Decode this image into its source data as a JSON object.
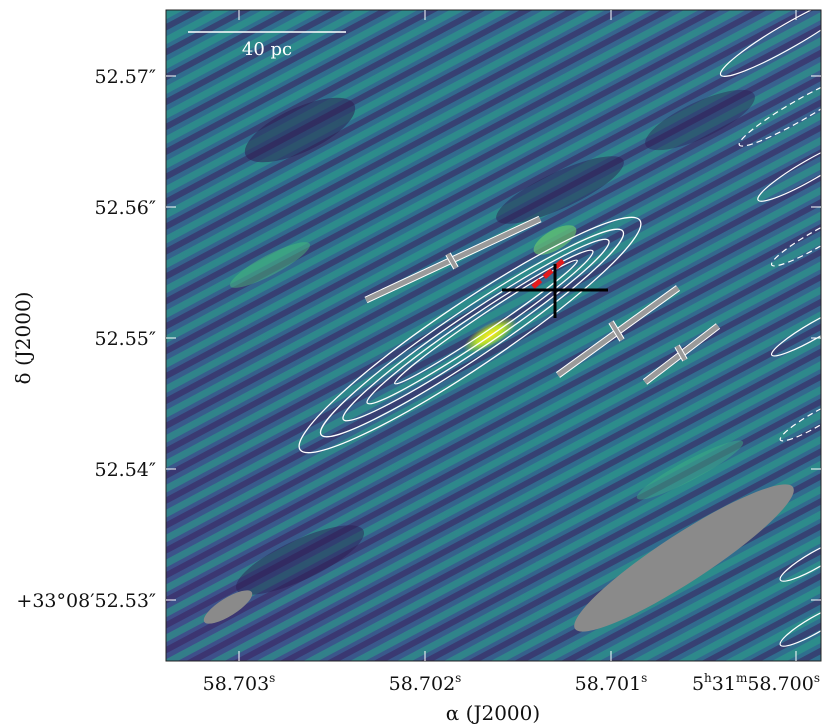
{
  "figure": {
    "x_axis_title": "α (J2000)",
    "y_axis_title": "δ (J2000)",
    "scalebar_label": "40 pc",
    "x_ticks": [
      {
        "main": "58.703",
        "sup": "s"
      },
      {
        "main": "58.702",
        "sup": "s"
      },
      {
        "main": "58.701",
        "sup": "s"
      },
      {
        "pre": "5",
        "pre_sup": "h",
        "mid": "31",
        "mid_sup": "m",
        "main": "58.700",
        "sup": "s"
      }
    ],
    "y_ticks": [
      "52.57″",
      "52.56″",
      "52.55″",
      "52.54″",
      "+33°08′52.53″"
    ]
  },
  "colors": {
    "background_map": "#3b5d8c",
    "contours": "#ffffff",
    "markers": "#9a9a9a",
    "cross": "#000000",
    "red_segment": "#e41a1c",
    "beam": "#8a8a8a"
  }
}
